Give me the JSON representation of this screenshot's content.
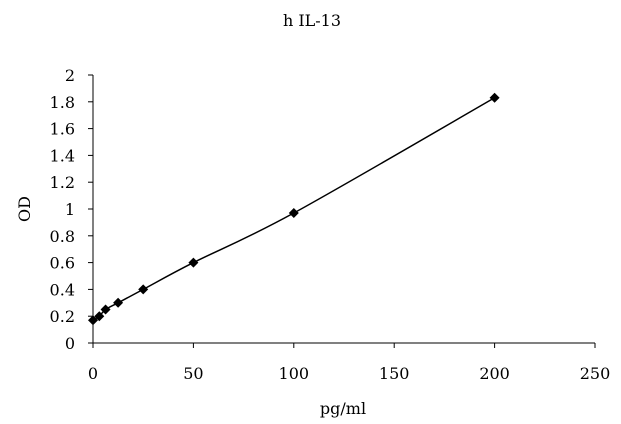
{
  "chart_data": {
    "type": "line",
    "title": "h IL-13",
    "xlabel": "pg/ml",
    "ylabel": "OD",
    "xlim": [
      0,
      250
    ],
    "ylim": [
      0,
      2
    ],
    "xticks": [
      0,
      50,
      100,
      150,
      200,
      250
    ],
    "yticks": [
      0,
      0.2,
      0.4,
      0.6,
      0.8,
      1,
      1.2,
      1.4,
      1.6,
      1.8,
      2
    ],
    "grid": false,
    "marker": "diamond",
    "series": [
      {
        "x": [
          0,
          3.13,
          6.25,
          12.5,
          25,
          50,
          100,
          200
        ],
        "y": [
          0.17,
          0.2,
          0.25,
          0.3,
          0.4,
          0.6,
          0.97,
          1.83
        ]
      }
    ]
  }
}
